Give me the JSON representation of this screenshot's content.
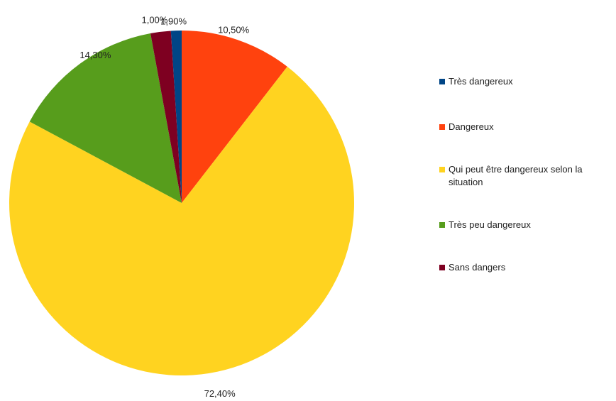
{
  "chart_data": {
    "type": "pie",
    "title": "",
    "slices": [
      {
        "label": "Très dangereux",
        "value": 1.0,
        "display": "1,00%",
        "color": "#004586"
      },
      {
        "label": "Dangereux",
        "value": 10.5,
        "display": "10,50%",
        "color": "#ff420e"
      },
      {
        "label": "Qui peut être dangereux selon la situation",
        "value": 72.4,
        "display": "72,40%",
        "color": "#ffd320"
      },
      {
        "label": "Très peu dangereux",
        "value": 14.3,
        "display": "14,30%",
        "color": "#579d1c"
      },
      {
        "label": "Sans dangers",
        "value": 1.9,
        "display": "1,90%",
        "color": "#7e0021"
      }
    ],
    "legend_position": "right"
  }
}
